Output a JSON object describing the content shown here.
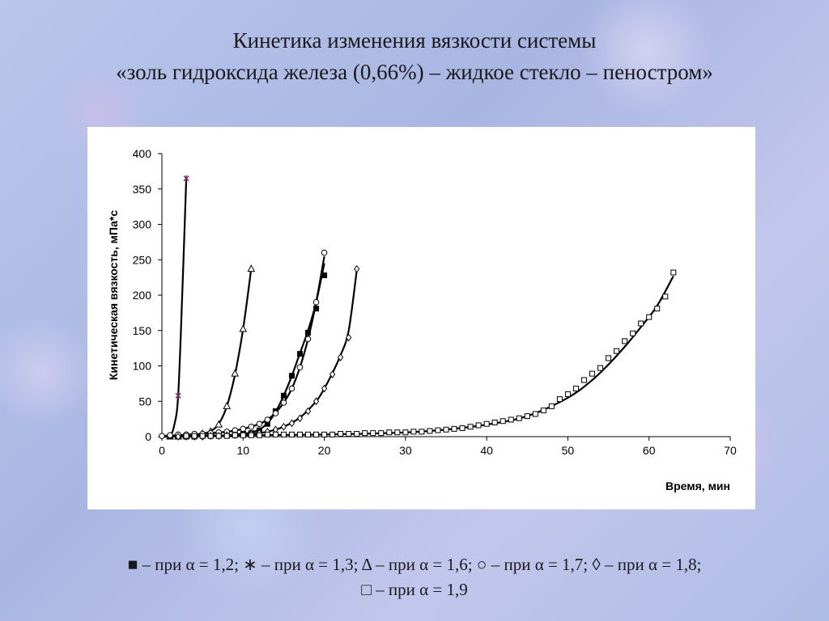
{
  "slide": {
    "title_line_1": "Кинетика изменения вязкости системы",
    "title_line_2": "«золь гидроксида железа (0,66%) – жидкое стекло – пеностром»",
    "caption_line_1": "■ – при α = 1,2; ∗ – при α = 1,3; Δ – при α = 1,6; ○ – при α = 1,7; ◊ – при α = 1,8;",
    "caption_line_2": "□ – при α = 1,9"
  },
  "chart_data": {
    "type": "scatter",
    "title": "",
    "xlabel": "Время, мин",
    "ylabel": "Кинетическая вязкость, мПа*с",
    "xlim": [
      0,
      70
    ],
    "ylim": [
      0,
      400
    ],
    "xticks": [
      0,
      10,
      20,
      30,
      40,
      50,
      60,
      70
    ],
    "yticks": [
      0,
      50,
      100,
      150,
      200,
      250,
      300,
      350,
      400
    ],
    "grid": false,
    "legend": "none",
    "series": [
      {
        "marker": "star",
        "color": "#7a1e6e",
        "points": [
          [
            1,
            1
          ],
          [
            2,
            58
          ],
          [
            3,
            365
          ]
        ],
        "curve": [
          [
            0.3,
            0
          ],
          [
            1,
            2
          ],
          [
            1.5,
            15
          ],
          [
            2,
            58
          ],
          [
            2.5,
            200
          ],
          [
            3,
            365
          ]
        ]
      },
      {
        "marker": "triangle",
        "color": "#000000",
        "points": [
          [
            1,
            0
          ],
          [
            2,
            0
          ],
          [
            3,
            1
          ],
          [
            4,
            2
          ],
          [
            5,
            4
          ],
          [
            6,
            7
          ],
          [
            7,
            17
          ],
          [
            8,
            43
          ],
          [
            9,
            89
          ],
          [
            10,
            152
          ],
          [
            11,
            237
          ]
        ],
        "curve": [
          [
            0,
            0
          ],
          [
            3,
            1
          ],
          [
            5,
            4
          ],
          [
            6,
            8
          ],
          [
            7,
            18
          ],
          [
            8,
            43
          ],
          [
            9,
            88
          ],
          [
            10,
            152
          ],
          [
            11,
            237
          ]
        ]
      },
      {
        "marker": "square-filled",
        "color": "#000000",
        "points": [
          [
            1,
            0
          ],
          [
            2,
            0
          ],
          [
            3,
            0
          ],
          [
            4,
            0
          ],
          [
            5,
            1
          ],
          [
            6,
            1
          ],
          [
            7,
            2
          ],
          [
            8,
            2
          ],
          [
            9,
            3
          ],
          [
            10,
            4
          ],
          [
            11,
            5
          ],
          [
            12,
            9
          ],
          [
            13,
            18
          ],
          [
            14,
            36
          ],
          [
            15,
            58
          ],
          [
            16,
            86
          ],
          [
            17,
            117
          ],
          [
            18,
            147
          ],
          [
            19,
            181
          ],
          [
            20,
            228
          ]
        ],
        "curve": [
          [
            0,
            0
          ],
          [
            5,
            1
          ],
          [
            8,
            2
          ],
          [
            10,
            4
          ],
          [
            11,
            6
          ],
          [
            12,
            10
          ],
          [
            13,
            19
          ],
          [
            14,
            35
          ],
          [
            15,
            58
          ],
          [
            16,
            86
          ],
          [
            17,
            118
          ],
          [
            18,
            150
          ],
          [
            19,
            190
          ],
          [
            20,
            245
          ]
        ]
      },
      {
        "marker": "circle",
        "color": "#000000",
        "points": [
          [
            0,
            1
          ],
          [
            1,
            2
          ],
          [
            2,
            3
          ],
          [
            3,
            3
          ],
          [
            4,
            4
          ],
          [
            5,
            4
          ],
          [
            6,
            5
          ],
          [
            7,
            6
          ],
          [
            8,
            7
          ],
          [
            9,
            9
          ],
          [
            10,
            11
          ],
          [
            11,
            14
          ],
          [
            12,
            18
          ],
          [
            13,
            24
          ],
          [
            14,
            33
          ],
          [
            15,
            48
          ],
          [
            16,
            68
          ],
          [
            17,
            98
          ],
          [
            18,
            138
          ],
          [
            19,
            190
          ],
          [
            20,
            260
          ]
        ],
        "curve": [
          [
            0,
            1
          ],
          [
            5,
            4
          ],
          [
            8,
            7
          ],
          [
            10,
            11
          ],
          [
            12,
            18
          ],
          [
            13,
            24
          ],
          [
            14,
            34
          ],
          [
            15,
            48
          ],
          [
            16,
            68
          ],
          [
            17,
            98
          ],
          [
            18,
            138
          ],
          [
            19,
            190
          ],
          [
            20,
            255
          ]
        ]
      },
      {
        "marker": "diamond",
        "color": "#000000",
        "points": [
          [
            2,
            0
          ],
          [
            3,
            0
          ],
          [
            4,
            0
          ],
          [
            5,
            0
          ],
          [
            6,
            1
          ],
          [
            7,
            1
          ],
          [
            8,
            2
          ],
          [
            9,
            2
          ],
          [
            10,
            3
          ],
          [
            11,
            4
          ],
          [
            12,
            5
          ],
          [
            13,
            7
          ],
          [
            14,
            10
          ],
          [
            15,
            14
          ],
          [
            16,
            19
          ],
          [
            17,
            26
          ],
          [
            18,
            36
          ],
          [
            19,
            50
          ],
          [
            20,
            68
          ],
          [
            21,
            88
          ],
          [
            22,
            112
          ],
          [
            23,
            140
          ],
          [
            24,
            237
          ]
        ],
        "curve": [
          [
            2,
            0
          ],
          [
            6,
            1
          ],
          [
            9,
            2
          ],
          [
            11,
            4
          ],
          [
            13,
            7
          ],
          [
            15,
            14
          ],
          [
            17,
            27
          ],
          [
            19,
            50
          ],
          [
            20,
            68
          ],
          [
            21,
            90
          ],
          [
            22,
            115
          ],
          [
            23,
            150
          ],
          [
            24,
            235
          ]
        ]
      },
      {
        "marker": "square",
        "color": "#000000",
        "points": [
          [
            3,
            1
          ],
          [
            4,
            1
          ],
          [
            5,
            1
          ],
          [
            6,
            1
          ],
          [
            7,
            1
          ],
          [
            8,
            1
          ],
          [
            9,
            2
          ],
          [
            10,
            2
          ],
          [
            11,
            2
          ],
          [
            12,
            2
          ],
          [
            13,
            3
          ],
          [
            14,
            3
          ],
          [
            15,
            3
          ],
          [
            16,
            3
          ],
          [
            17,
            3
          ],
          [
            18,
            3
          ],
          [
            19,
            3
          ],
          [
            20,
            3
          ],
          [
            21,
            3
          ],
          [
            22,
            4
          ],
          [
            23,
            4
          ],
          [
            24,
            4
          ],
          [
            25,
            5
          ],
          [
            26,
            5
          ],
          [
            27,
            5
          ],
          [
            28,
            6
          ],
          [
            29,
            6
          ],
          [
            30,
            6
          ],
          [
            31,
            7
          ],
          [
            32,
            7
          ],
          [
            33,
            8
          ],
          [
            34,
            9
          ],
          [
            35,
            10
          ],
          [
            36,
            11
          ],
          [
            37,
            12
          ],
          [
            38,
            14
          ],
          [
            39,
            16
          ],
          [
            40,
            18
          ],
          [
            41,
            20
          ],
          [
            42,
            22
          ],
          [
            43,
            24
          ],
          [
            44,
            26
          ],
          [
            45,
            29
          ],
          [
            46,
            32
          ],
          [
            47,
            37
          ],
          [
            48,
            43
          ],
          [
            49,
            53
          ],
          [
            50,
            60
          ],
          [
            51,
            68
          ],
          [
            52,
            80
          ],
          [
            53,
            89
          ],
          [
            54,
            97
          ],
          [
            55,
            111
          ],
          [
            56,
            121
          ],
          [
            57,
            135
          ],
          [
            58,
            146
          ],
          [
            59,
            160
          ],
          [
            60,
            169
          ],
          [
            61,
            181
          ],
          [
            62,
            198
          ],
          [
            63,
            232
          ]
        ],
        "curve": [
          [
            0,
            0
          ],
          [
            10,
            2
          ],
          [
            20,
            3
          ],
          [
            30,
            6
          ],
          [
            35,
            10
          ],
          [
            40,
            17
          ],
          [
            45,
            29
          ],
          [
            50,
            55
          ],
          [
            53,
            80
          ],
          [
            55,
            102
          ],
          [
            57,
            127
          ],
          [
            59,
            155
          ],
          [
            61,
            185
          ],
          [
            63,
            227
          ]
        ]
      }
    ]
  }
}
